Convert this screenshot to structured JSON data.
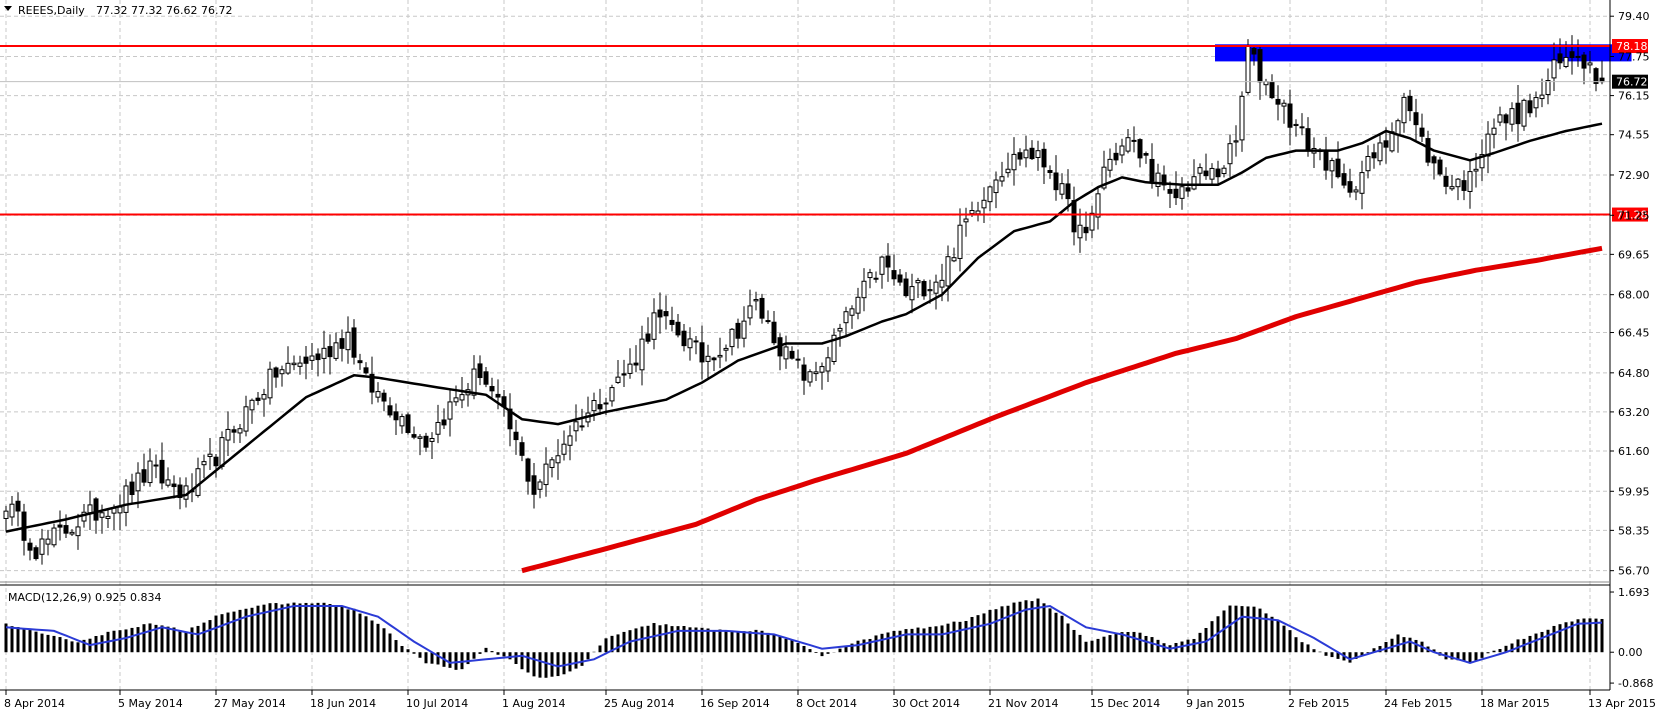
{
  "header": {
    "symbol": "REEES,Daily",
    "ohlc": "77.32 77.32 76.62 76.72"
  },
  "indicator": {
    "label": "MACD(12,26,9) 0.925 0.834"
  },
  "colors": {
    "background": "#ffffff",
    "grid": "#c8c8c8",
    "candle": "#000000",
    "ma_fast": "#000000",
    "ma_slow": "#e00000",
    "level_line": "#ff0000",
    "zone": "#0000ff",
    "macd_bar": "#000000",
    "signal": "#2b3bd6",
    "last_price_badge": "#000000"
  },
  "icons": [
    "dropdown-triangle-icon"
  ],
  "chart_data": {
    "type": "candlestick",
    "price_axis_ticks": [
      79.4,
      77.75,
      76.15,
      74.55,
      72.9,
      71.25,
      69.65,
      68.0,
      66.45,
      64.8,
      63.2,
      61.6,
      59.95,
      58.35,
      56.7
    ],
    "price_axis_labels": [
      "79.40",
      "77.75",
      "76.15",
      "74.55",
      "72.90",
      "71.25",
      "69.65",
      "68.00",
      "66.45",
      "64.80",
      "63.20",
      "61.60",
      "59.95",
      "58.35",
      "56.70"
    ],
    "ylim": [
      56.4,
      79.9
    ],
    "x_ticks": [
      "8 Apr 2014",
      "5 May 2014",
      "27 May 2014",
      "18 Jun 2014",
      "10 Jul 2014",
      "1 Aug 2014",
      "25 Aug 2014",
      "16 Sep 2014",
      "8 Oct 2014",
      "30 Oct 2014",
      "21 Nov 2014",
      "15 Dec 2014",
      "9 Jan 2015",
      "2 Feb 2015",
      "24 Feb 2015",
      "18 Mar 2015",
      "13 Apr 2015"
    ],
    "x_tick_bar_index": [
      0,
      19,
      35,
      51,
      67,
      83,
      100,
      116,
      132,
      148,
      164,
      181,
      197,
      214,
      230,
      246,
      264
    ],
    "bar_count": 267,
    "anchors_close": [
      [
        0,
        59.5
      ],
      [
        5,
        57.6
      ],
      [
        12,
        58.7
      ],
      [
        19,
        59.6
      ],
      [
        24,
        60.8
      ],
      [
        30,
        59.8
      ],
      [
        35,
        61.4
      ],
      [
        41,
        63.6
      ],
      [
        45,
        64.8
      ],
      [
        53,
        65.6
      ],
      [
        57,
        66.4
      ],
      [
        60,
        64.4
      ],
      [
        65,
        63.2
      ],
      [
        70,
        62.0
      ],
      [
        74,
        63.4
      ],
      [
        79,
        64.9
      ],
      [
        84,
        62.5
      ],
      [
        88,
        60.0
      ],
      [
        94,
        62.4
      ],
      [
        100,
        64.0
      ],
      [
        104,
        65.0
      ],
      [
        108,
        67.0
      ],
      [
        112,
        66.5
      ],
      [
        116,
        65.4
      ],
      [
        120,
        66.0
      ],
      [
        125,
        67.6
      ],
      [
        130,
        65.5
      ],
      [
        134,
        64.5
      ],
      [
        137,
        65.6
      ],
      [
        141,
        67.4
      ],
      [
        146,
        69.3
      ],
      [
        150,
        68.0
      ],
      [
        156,
        68.8
      ],
      [
        160,
        71.0
      ],
      [
        165,
        73.0
      ],
      [
        170,
        73.9
      ],
      [
        174,
        73.2
      ],
      [
        178,
        71.0
      ],
      [
        180,
        70.2
      ],
      [
        183,
        73.2
      ],
      [
        187,
        74.3
      ],
      [
        190,
        73.5
      ],
      [
        194,
        71.8
      ],
      [
        198,
        72.8
      ],
      [
        202,
        73.0
      ],
      [
        205,
        74.2
      ],
      [
        207,
        78.0
      ],
      [
        209,
        77.0
      ],
      [
        212,
        76.0
      ],
      [
        216,
        74.5
      ],
      [
        220,
        73.5
      ],
      [
        223,
        72.2
      ],
      [
        226,
        73.0
      ],
      [
        230,
        74.2
      ],
      [
        233,
        76.2
      ],
      [
        235,
        74.8
      ],
      [
        238,
        73.2
      ],
      [
        241,
        72.5
      ],
      [
        244,
        72.7
      ],
      [
        247,
        74.8
      ],
      [
        251,
        75.3
      ],
      [
        255,
        75.8
      ],
      [
        258,
        77.2
      ],
      [
        262,
        78.0
      ],
      [
        266,
        76.72
      ]
    ],
    "ma_fast_anchors": [
      [
        0,
        58.3
      ],
      [
        10,
        58.8
      ],
      [
        20,
        59.4
      ],
      [
        30,
        59.8
      ],
      [
        40,
        61.8
      ],
      [
        50,
        63.8
      ],
      [
        58,
        64.7
      ],
      [
        62,
        64.6
      ],
      [
        72,
        64.2
      ],
      [
        80,
        63.9
      ],
      [
        86,
        62.9
      ],
      [
        92,
        62.7
      ],
      [
        100,
        63.2
      ],
      [
        110,
        63.7
      ],
      [
        116,
        64.4
      ],
      [
        122,
        65.3
      ],
      [
        130,
        66.0
      ],
      [
        136,
        66.0
      ],
      [
        140,
        66.3
      ],
      [
        146,
        66.9
      ],
      [
        150,
        67.2
      ],
      [
        156,
        68.0
      ],
      [
        162,
        69.5
      ],
      [
        168,
        70.6
      ],
      [
        174,
        71.0
      ],
      [
        178,
        71.8
      ],
      [
        182,
        72.4
      ],
      [
        186,
        72.8
      ],
      [
        190,
        72.6
      ],
      [
        196,
        72.5
      ],
      [
        202,
        72.5
      ],
      [
        206,
        73.0
      ],
      [
        210,
        73.6
      ],
      [
        215,
        73.9
      ],
      [
        222,
        73.9
      ],
      [
        226,
        74.2
      ],
      [
        230,
        74.7
      ],
      [
        234,
        74.4
      ],
      [
        238,
        73.9
      ],
      [
        244,
        73.5
      ],
      [
        248,
        73.8
      ],
      [
        254,
        74.3
      ],
      [
        260,
        74.7
      ],
      [
        266,
        75.0
      ]
    ],
    "ma_slow_anchors": [
      [
        86,
        56.7
      ],
      [
        100,
        57.6
      ],
      [
        115,
        58.6
      ],
      [
        125,
        59.6
      ],
      [
        135,
        60.4
      ],
      [
        150,
        61.5
      ],
      [
        165,
        63.0
      ],
      [
        180,
        64.4
      ],
      [
        195,
        65.6
      ],
      [
        205,
        66.2
      ],
      [
        215,
        67.1
      ],
      [
        225,
        67.8
      ],
      [
        235,
        68.5
      ],
      [
        245,
        69.0
      ],
      [
        255,
        69.4
      ],
      [
        266,
        69.9
      ]
    ],
    "levels": [
      {
        "value": 78.18,
        "label": "78.18"
      },
      {
        "value": 71.28,
        "label": "71.28"
      }
    ],
    "last_price": {
      "value": 76.72,
      "label": "76.72"
    },
    "zone": {
      "top": 78.25,
      "bottom": 77.55,
      "start_bar": 202,
      "end_bar": 291
    },
    "macd": {
      "ylim": [
        -0.95,
        1.75
      ],
      "axis_ticks": [
        1.693,
        0.0,
        -0.868
      ],
      "axis_labels": [
        "1.693",
        "0.00",
        "-0.868"
      ],
      "hist_anchors": [
        [
          0,
          0.8
        ],
        [
          6,
          0.5
        ],
        [
          12,
          0.3
        ],
        [
          18,
          0.6
        ],
        [
          24,
          0.8
        ],
        [
          30,
          0.6
        ],
        [
          36,
          1.1
        ],
        [
          44,
          1.35
        ],
        [
          52,
          1.4
        ],
        [
          58,
          1.2
        ],
        [
          62,
          0.8
        ],
        [
          66,
          0.2
        ],
        [
          70,
          -0.3
        ],
        [
          76,
          -0.5
        ],
        [
          80,
          0.1
        ],
        [
          84,
          -0.2
        ],
        [
          88,
          -0.7
        ],
        [
          92,
          -0.7
        ],
        [
          96,
          -0.4
        ],
        [
          100,
          0.4
        ],
        [
          108,
          0.8
        ],
        [
          114,
          0.7
        ],
        [
          120,
          0.6
        ],
        [
          126,
          0.6
        ],
        [
          130,
          0.4
        ],
        [
          136,
          -0.1
        ],
        [
          142,
          0.3
        ],
        [
          148,
          0.6
        ],
        [
          154,
          0.7
        ],
        [
          160,
          0.9
        ],
        [
          166,
          1.3
        ],
        [
          172,
          1.5
        ],
        [
          176,
          1.0
        ],
        [
          180,
          0.3
        ],
        [
          184,
          0.5
        ],
        [
          188,
          0.6
        ],
        [
          194,
          0.2
        ],
        [
          198,
          0.4
        ],
        [
          204,
          1.3
        ],
        [
          208,
          1.3
        ],
        [
          212,
          0.9
        ],
        [
          216,
          0.3
        ],
        [
          220,
          -0.1
        ],
        [
          224,
          -0.3
        ],
        [
          228,
          0.1
        ],
        [
          232,
          0.5
        ],
        [
          236,
          0.3
        ],
        [
          240,
          -0.2
        ],
        [
          244,
          -0.3
        ],
        [
          250,
          0.2
        ],
        [
          256,
          0.6
        ],
        [
          262,
          0.95
        ],
        [
          266,
          0.925
        ]
      ],
      "signal_anchors": [
        [
          0,
          0.7
        ],
        [
          8,
          0.6
        ],
        [
          14,
          0.2
        ],
        [
          20,
          0.4
        ],
        [
          26,
          0.7
        ],
        [
          32,
          0.5
        ],
        [
          40,
          1.0
        ],
        [
          48,
          1.3
        ],
        [
          56,
          1.3
        ],
        [
          62,
          1.0
        ],
        [
          68,
          0.3
        ],
        [
          74,
          -0.3
        ],
        [
          80,
          -0.2
        ],
        [
          86,
          -0.1
        ],
        [
          92,
          -0.4
        ],
        [
          98,
          -0.2
        ],
        [
          104,
          0.3
        ],
        [
          112,
          0.6
        ],
        [
          120,
          0.6
        ],
        [
          128,
          0.5
        ],
        [
          136,
          0.1
        ],
        [
          142,
          0.2
        ],
        [
          150,
          0.5
        ],
        [
          156,
          0.5
        ],
        [
          164,
          0.8
        ],
        [
          170,
          1.2
        ],
        [
          174,
          1.3
        ],
        [
          180,
          0.7
        ],
        [
          186,
          0.5
        ],
        [
          194,
          0.1
        ],
        [
          200,
          0.3
        ],
        [
          206,
          1.0
        ],
        [
          212,
          0.9
        ],
        [
          218,
          0.4
        ],
        [
          224,
          -0.2
        ],
        [
          230,
          0.1
        ],
        [
          234,
          0.3
        ],
        [
          238,
          0.0
        ],
        [
          244,
          -0.3
        ],
        [
          250,
          0.0
        ],
        [
          256,
          0.4
        ],
        [
          262,
          0.8
        ],
        [
          266,
          0.834
        ]
      ]
    }
  }
}
